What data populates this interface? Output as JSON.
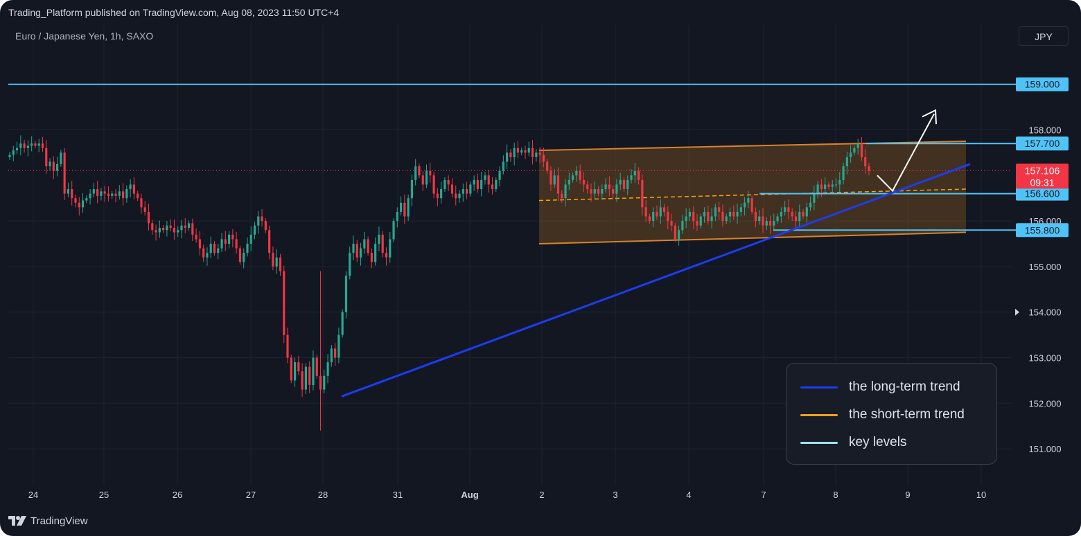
{
  "header": {
    "publish_info": "Trading_Platform published on TradingView.com, Aug 08, 2023 11:50 UTC+4",
    "symbol_info": "Euro / Japanese Yen, 1h, SAXO",
    "currency_button": "JPY"
  },
  "footer": {
    "brand": "TradingView"
  },
  "legend": {
    "items": [
      {
        "label": "the long-term trend",
        "color": "#1e3cf0"
      },
      {
        "label": "the short-term trend",
        "color": "#f7a21b"
      },
      {
        "label": "key levels",
        "color": "#9de3ff"
      }
    ]
  },
  "chart_data": {
    "type": "candlestick",
    "symbol": "Euro / Japanese Yen",
    "interval": "1h",
    "source": "SAXO",
    "x_tick_labels": [
      "24",
      "25",
      "26",
      "27",
      "28",
      "31",
      "Aug",
      "2",
      "3",
      "4",
      "7",
      "8",
      "9",
      "10"
    ],
    "y_ticks": [
      151.0,
      152.0,
      153.0,
      154.0,
      155.0,
      156.0,
      158.0
    ],
    "y_tick_labels": [
      "151.000",
      "152.000",
      "153.000",
      "154.000",
      "155.000",
      "156.000",
      "158.000"
    ],
    "ylim": [
      150.0,
      160.0
    ],
    "current_price": {
      "value": 157.106,
      "label": "157.106",
      "countdown": "09:31",
      "color": "#f23645"
    },
    "key_levels": [
      {
        "label": "159.000",
        "value": 159.0
      },
      {
        "label": "157.700",
        "value": 157.7
      },
      {
        "label": "156.600",
        "value": 156.6
      },
      {
        "label": "155.800",
        "value": 155.8
      }
    ],
    "closes": [
      157.45,
      157.55,
      157.6,
      157.7,
      157.6,
      157.65,
      157.7,
      157.65,
      157.7,
      157.6,
      157.2,
      157.3,
      157.1,
      157.25,
      157.5,
      156.6,
      156.7,
      156.5,
      156.4,
      156.3,
      156.45,
      156.5,
      156.6,
      156.7,
      156.55,
      156.65,
      156.6,
      156.55,
      156.6,
      156.55,
      156.65,
      156.5,
      156.7,
      156.8,
      156.6,
      156.5,
      156.3,
      156.2,
      155.95,
      155.8,
      155.75,
      155.85,
      155.8,
      155.9,
      155.85,
      155.75,
      155.8,
      155.9,
      155.85,
      155.95,
      155.7,
      155.6,
      155.4,
      155.2,
      155.3,
      155.5,
      155.3,
      155.4,
      155.6,
      155.5,
      155.7,
      155.6,
      155.4,
      155.1,
      155.3,
      155.5,
      155.7,
      155.9,
      156.1,
      156.0,
      155.8,
      155.3,
      155.0,
      155.2,
      154.9,
      153.5,
      153.0,
      152.5,
      152.9,
      152.7,
      152.3,
      152.8,
      152.4,
      153.0,
      152.6,
      152.3,
      152.6,
      152.9,
      153.2,
      153.0,
      153.5,
      154.0,
      154.8,
      155.3,
      155.5,
      155.2,
      155.4,
      155.6,
      155.3,
      155.1,
      155.5,
      155.7,
      155.3,
      155.2,
      155.6,
      156.0,
      156.2,
      156.4,
      156.1,
      156.5,
      156.9,
      157.2,
      157.0,
      156.8,
      157.1,
      157.0,
      156.6,
      156.5,
      156.7,
      156.9,
      156.8,
      156.6,
      156.5,
      156.6,
      156.7,
      156.6,
      156.8,
      156.9,
      156.7,
      156.9,
      157.0,
      156.8,
      156.7,
      156.9,
      157.1,
      157.3,
      157.5,
      157.4,
      157.6,
      157.5,
      157.55,
      157.5,
      157.6,
      157.4,
      157.5,
      157.45,
      157.3,
      157.1,
      156.8,
      157.0,
      156.6,
      156.5,
      156.8,
      156.9,
      157.0,
      157.1,
      156.9,
      156.8,
      156.7,
      156.6,
      156.7,
      156.6,
      156.7,
      156.8,
      156.7,
      156.6,
      156.8,
      156.9,
      156.7,
      156.9,
      157.0,
      157.1,
      156.9,
      156.3,
      156.1,
      156.0,
      156.2,
      156.1,
      156.3,
      156.2,
      156.0,
      155.9,
      155.6,
      155.8,
      156.0,
      156.1,
      156.2,
      156.0,
      155.9,
      156.1,
      156.2,
      156.0,
      156.1,
      156.3,
      156.2,
      156.0,
      156.1,
      156.2,
      156.1,
      156.2,
      156.3,
      156.4,
      156.5,
      156.2,
      156.0,
      156.1,
      155.9,
      156.0,
      155.9,
      156.0,
      156.1,
      156.2,
      156.3,
      156.2,
      156.1,
      156.0,
      156.2,
      156.1,
      156.3,
      156.4,
      156.6,
      156.8,
      156.7,
      156.8,
      156.75,
      156.8,
      156.8,
      156.9,
      157.2,
      157.4,
      157.5,
      157.6,
      157.7,
      157.4,
      157.2,
      157.1
    ],
    "trend_long": {
      "from": {
        "x": "Jul 28",
        "y": 152.15
      },
      "to": {
        "x": "Aug 9",
        "y": 157.25
      },
      "color": "#1e3cf0"
    },
    "channel": {
      "upper": {
        "from": 157.55,
        "to": 157.75
      },
      "lower": {
        "from": 155.5,
        "to": 155.75
      },
      "mid": {
        "from": 156.45,
        "to": 156.7
      },
      "fill": "#8a5a1e",
      "line_color": "#d9822b"
    },
    "projection_arrow": "white arrow rising toward 158.4 after pullback to 156.6",
    "up_color": "#22ab94",
    "down_color": "#f23645",
    "grid": true
  }
}
